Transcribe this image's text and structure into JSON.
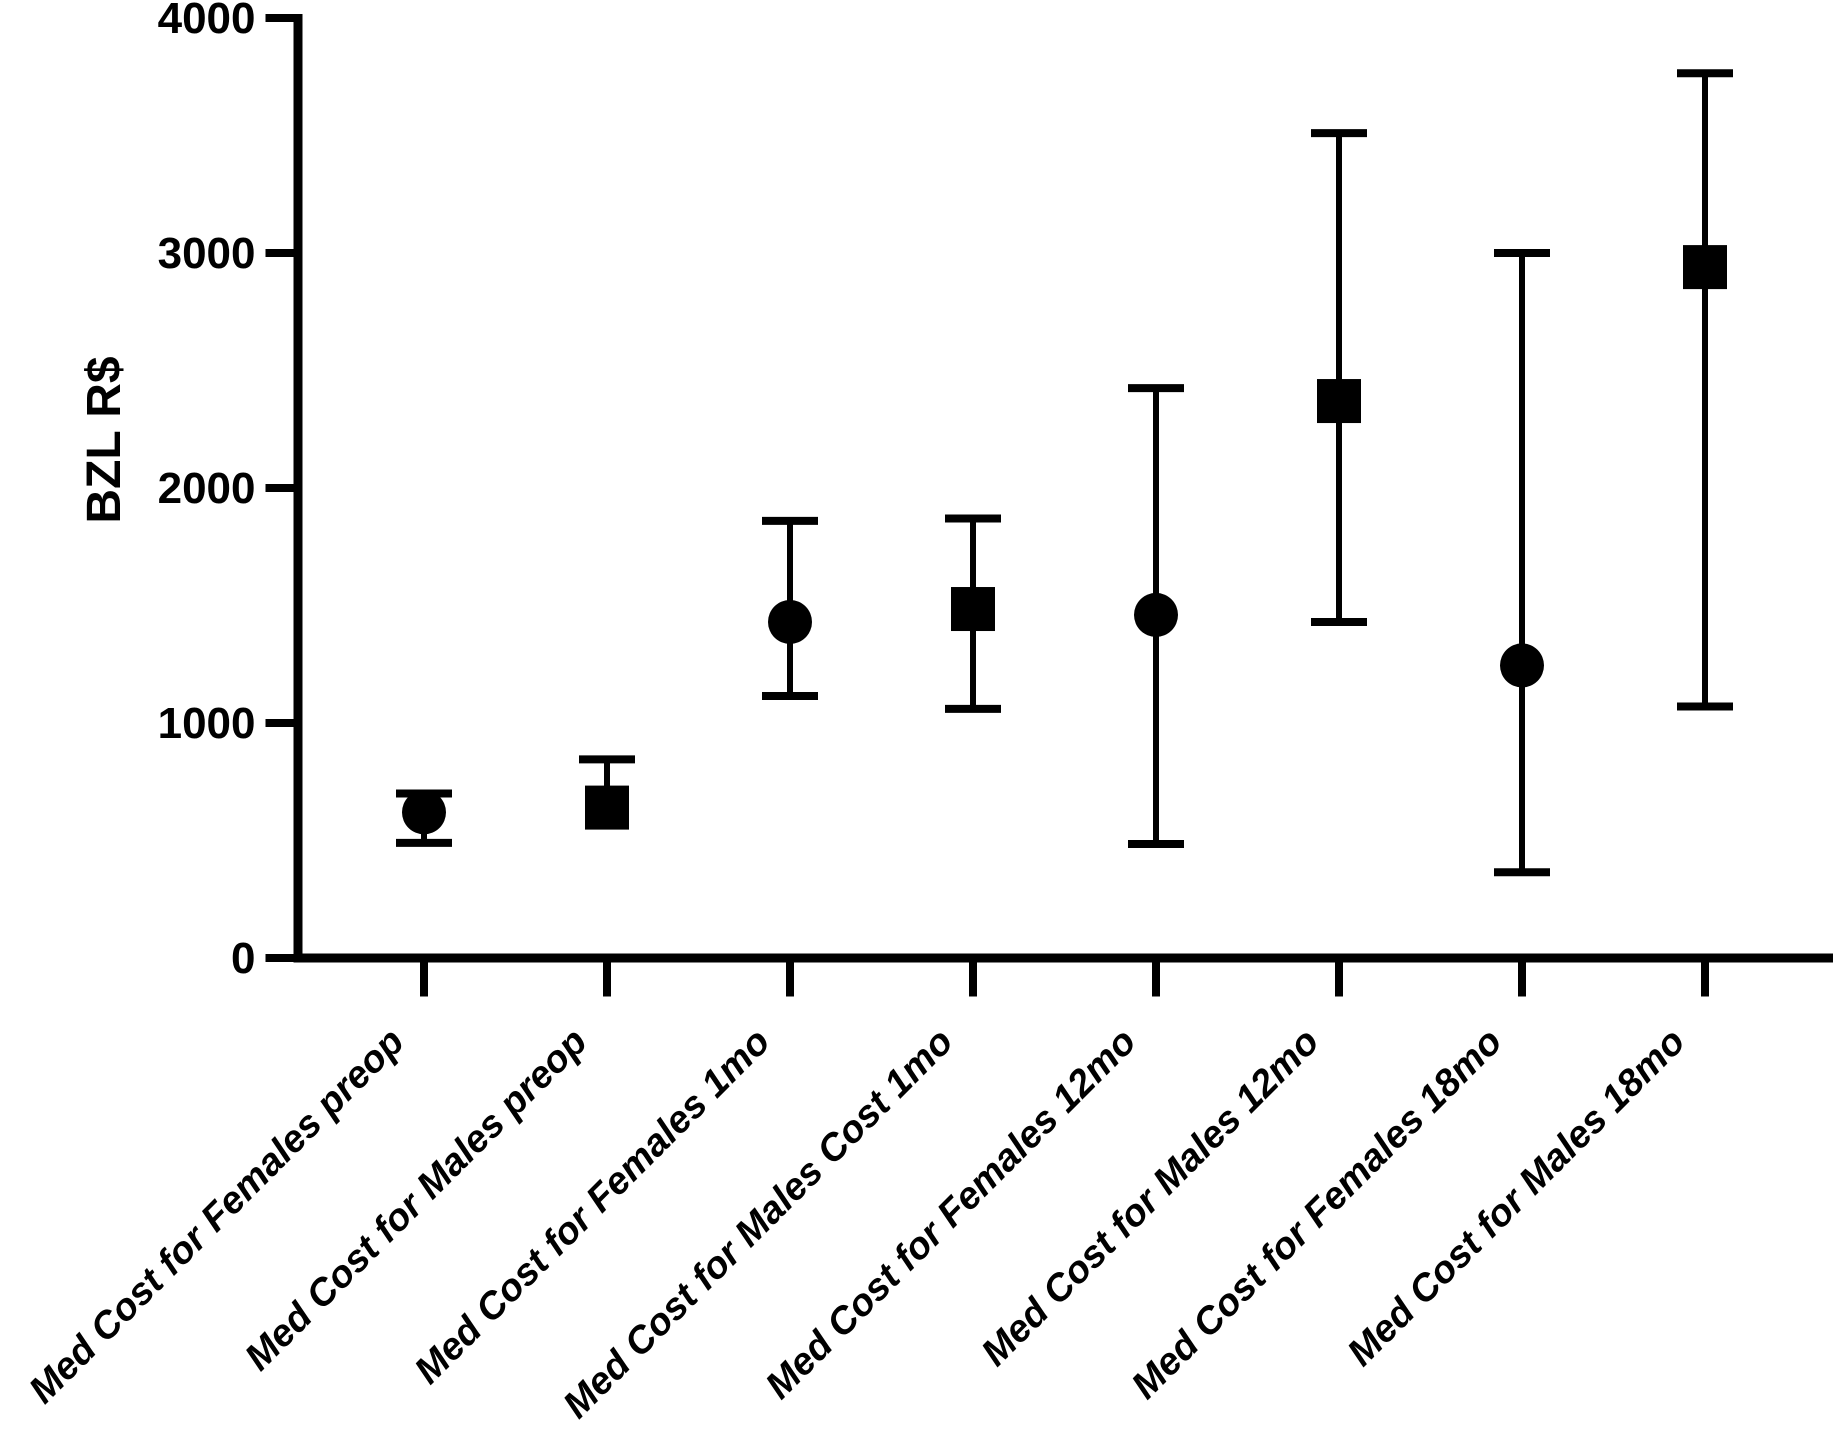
{
  "figure": {
    "background_color": "#ffffff",
    "ink_color": "#000000"
  },
  "chart_data": {
    "type": "scatter",
    "title": "",
    "xlabel": "",
    "ylabel": "BZL R$",
    "ylim": [
      0,
      4000
    ],
    "yticks": [
      0,
      1000,
      2000,
      3000,
      4000
    ],
    "ytick_labels": [
      "0",
      "1000",
      "2000",
      "3000",
      "4000"
    ],
    "grid": false,
    "legend": "none",
    "marker_color": "#000000",
    "error_bar_style": "whisker-with-caps",
    "categories": [
      "Med Cost for Females  preop",
      "Med Cost for Males  preop",
      "Med Cost for Females 1mo",
      "Med Cost for Males Cost 1mo",
      "Med Cost for Females 12mo",
      "Med Cost for Males  12mo",
      "Med Cost for Females 18mo",
      "Med Cost for Males 18mo"
    ],
    "points": [
      {
        "label": "Med Cost for Females  preop",
        "group": "Females",
        "timepoint": "preop",
        "marker": "circle",
        "mean": 620,
        "upper": 700,
        "lower": 490
      },
      {
        "label": "Med Cost for Males  preop",
        "group": "Males",
        "timepoint": "preop",
        "marker": "square",
        "mean": 640,
        "upper": 845,
        "lower": null
      },
      {
        "label": "Med Cost for Females 1mo",
        "group": "Females",
        "timepoint": "1mo",
        "marker": "circle",
        "mean": 1430,
        "upper": 1860,
        "lower": 1115
      },
      {
        "label": "Med Cost for Males Cost 1mo",
        "group": "Males",
        "timepoint": "1mo",
        "marker": "square",
        "mean": 1485,
        "upper": 1870,
        "lower": 1060
      },
      {
        "label": "Med Cost for Females 12mo",
        "group": "Females",
        "timepoint": "12mo",
        "marker": "circle",
        "mean": 1460,
        "upper": 2425,
        "lower": 485
      },
      {
        "label": "Med Cost for Males  12mo",
        "group": "Males",
        "timepoint": "12mo",
        "marker": "square",
        "mean": 2370,
        "upper": 3510,
        "lower": 1430
      },
      {
        "label": "Med Cost for Females 18mo",
        "group": "Females",
        "timepoint": "18mo",
        "marker": "circle",
        "mean": 1245,
        "upper": 3000,
        "lower": 365
      },
      {
        "label": "Med Cost for Males 18mo",
        "group": "Males",
        "timepoint": "18mo",
        "marker": "square",
        "mean": 2940,
        "upper": 3765,
        "lower": 1070
      }
    ]
  }
}
